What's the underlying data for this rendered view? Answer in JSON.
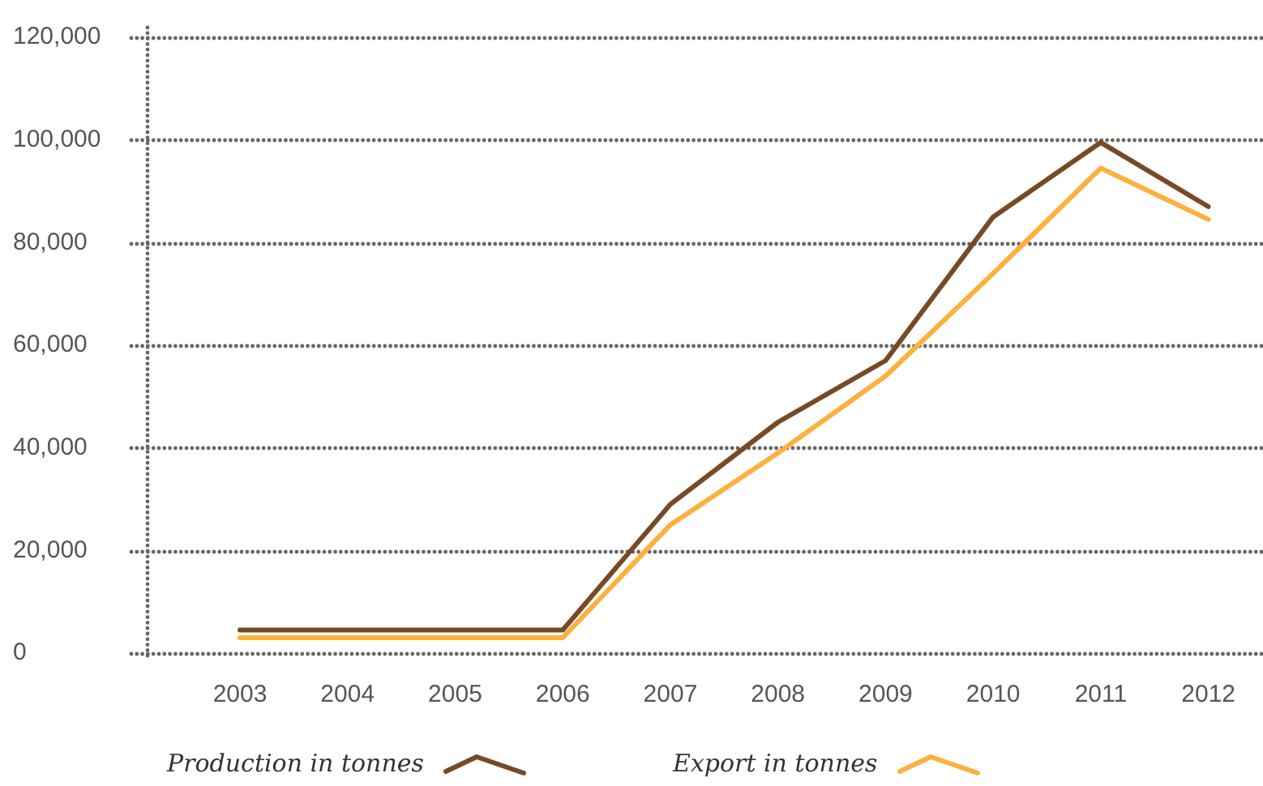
{
  "chart_data": {
    "type": "line",
    "categories": [
      "2003",
      "2004",
      "2005",
      "2006",
      "2007",
      "2008",
      "2009",
      "2010",
      "2011",
      "2012"
    ],
    "series": [
      {
        "name": "Production in tonnes",
        "color": "#774a26",
        "values": [
          4500,
          4500,
          4500,
          4500,
          29000,
          45000,
          57000,
          85000,
          99500,
          87000
        ]
      },
      {
        "name": "Export in tonnes",
        "color": "#fdb03d",
        "values": [
          3000,
          3000,
          3000,
          3000,
          25000,
          39000,
          54000,
          74000,
          94500,
          84500
        ]
      }
    ],
    "ylim": [
      0,
      120000
    ],
    "yticks": [
      {
        "value": 0,
        "label": "0"
      },
      {
        "value": 20000,
        "label": "20,000"
      },
      {
        "value": 40000,
        "label": "40,000"
      },
      {
        "value": 60000,
        "label": "60,000"
      },
      {
        "value": 80000,
        "label": "80,000"
      },
      {
        "value": 100000,
        "label": "100,000"
      },
      {
        "value": 120000,
        "label": "120,000"
      }
    ],
    "grid": "y",
    "legend": "bottom",
    "line_style": "solid"
  }
}
